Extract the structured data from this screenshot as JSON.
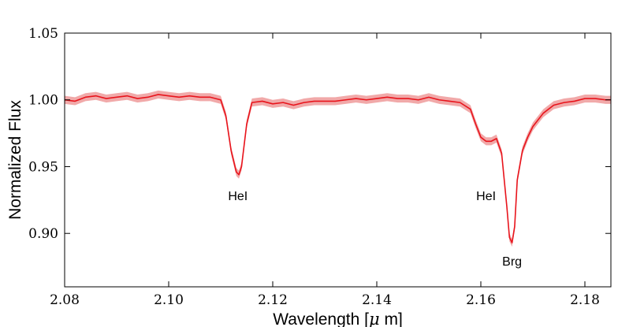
{
  "chart_data": {
    "type": "line",
    "title": "",
    "xlabel": "Wavelength [$\\mu$ m]",
    "ylabel": "Normalized Flux",
    "xlim": [
      2.08,
      2.185
    ],
    "ylim": [
      0.86,
      1.05
    ],
    "xticks": [
      2.08,
      2.1,
      2.12,
      2.14,
      2.16,
      2.18
    ],
    "xtick_labels": [
      "2.08",
      "2.10",
      "2.12",
      "2.14",
      "2.16",
      "2.18"
    ],
    "yticks": [
      0.9,
      0.95,
      1.0,
      1.05
    ],
    "ytick_labels": [
      "0.90",
      "0.95",
      "1.00",
      "1.05"
    ],
    "grid": false,
    "legend": "none",
    "line_color": "#e8141c",
    "band_color": "#f0a0a0",
    "band_halfwidth": 0.003,
    "series": [
      {
        "x": [
          2.08,
          2.082,
          2.084,
          2.086,
          2.088,
          2.09,
          2.092,
          2.094,
          2.096,
          2.098,
          2.1,
          2.102,
          2.104,
          2.106,
          2.108,
          2.11,
          2.111,
          2.112,
          2.113,
          2.1135,
          2.114,
          2.115,
          2.116,
          2.118,
          2.12,
          2.122,
          2.124,
          2.126,
          2.128,
          2.13,
          2.132,
          2.134,
          2.136,
          2.138,
          2.14,
          2.142,
          2.144,
          2.146,
          2.148,
          2.15,
          2.152,
          2.154,
          2.156,
          2.158,
          2.159,
          2.16,
          2.161,
          2.162,
          2.163,
          2.164,
          2.165,
          2.1655,
          2.166,
          2.1665,
          2.167,
          2.168,
          2.169,
          2.17,
          2.172,
          2.174,
          2.176,
          2.178,
          2.18,
          2.182,
          2.184,
          2.185
        ],
        "y": [
          1.0,
          0.999,
          1.002,
          1.003,
          1.001,
          1.002,
          1.003,
          1.001,
          1.002,
          1.004,
          1.003,
          1.002,
          1.003,
          1.002,
          1.002,
          1.0,
          0.988,
          0.962,
          0.946,
          0.944,
          0.95,
          0.982,
          0.998,
          0.999,
          0.997,
          0.998,
          0.996,
          0.998,
          0.999,
          0.999,
          0.999,
          1.0,
          1.001,
          1.0,
          1.001,
          1.002,
          1.001,
          1.001,
          1.0,
          1.002,
          1.0,
          0.999,
          0.998,
          0.993,
          0.982,
          0.972,
          0.969,
          0.969,
          0.971,
          0.96,
          0.92,
          0.897,
          0.893,
          0.905,
          0.94,
          0.962,
          0.972,
          0.98,
          0.99,
          0.996,
          0.998,
          0.999,
          1.001,
          1.001,
          1.0,
          1.0
        ]
      }
    ],
    "annotations": [
      {
        "text": "HeI",
        "x": 2.1133,
        "y": 0.925
      },
      {
        "text": "HeI",
        "x": 2.161,
        "y": 0.925
      },
      {
        "text": "Brg",
        "x": 2.166,
        "y": 0.876
      }
    ]
  }
}
